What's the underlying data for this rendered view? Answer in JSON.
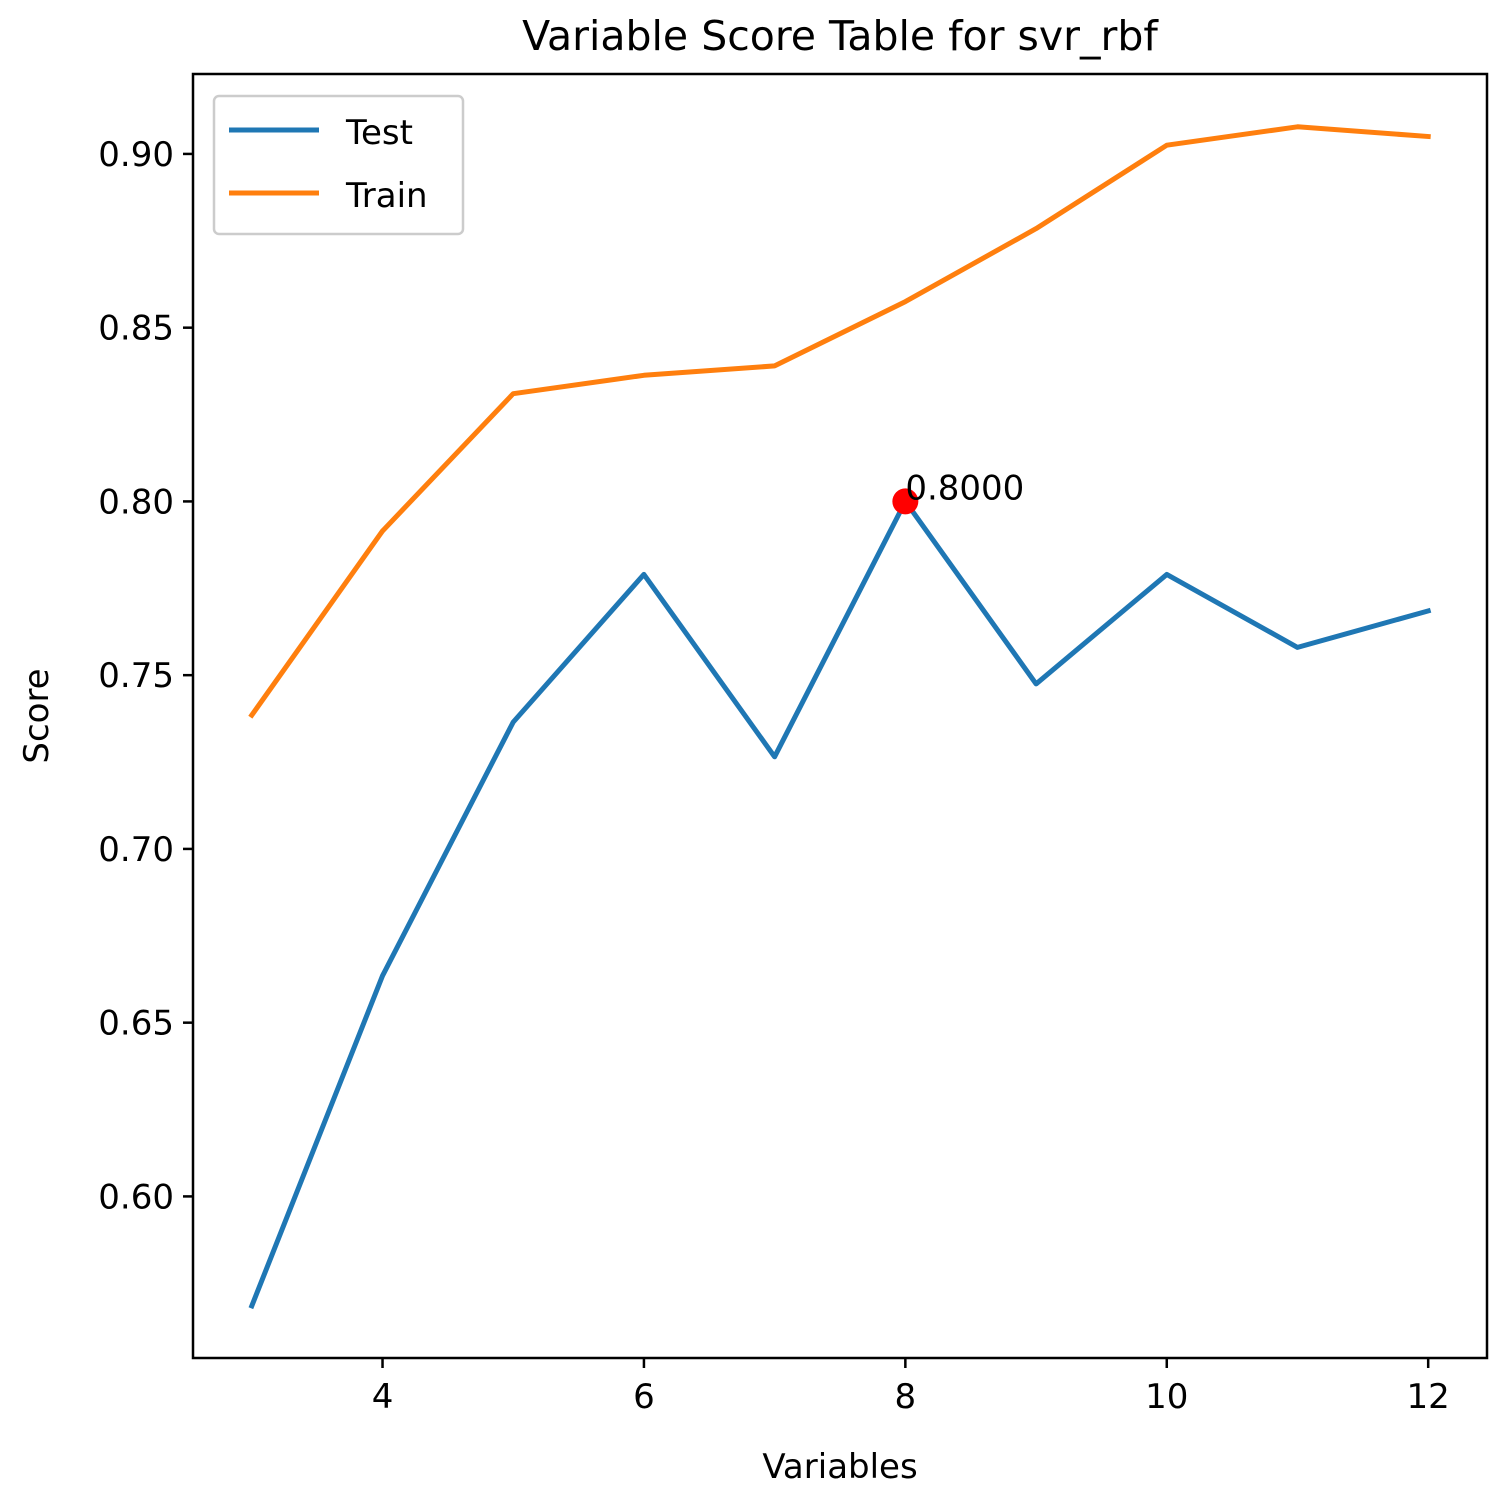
{
  "chart_data": {
    "type": "line",
    "title": "Variable Score Table for svr_rbf",
    "xlabel": "Variables",
    "ylabel": "Score",
    "xlim": [
      2.55,
      12.45
    ],
    "ylim": [
      0.5535,
      0.923
    ],
    "x_ticks": [
      4,
      6,
      8,
      10,
      12
    ],
    "y_ticks": [
      0.6,
      0.65,
      0.7,
      0.75,
      0.8,
      0.85,
      0.9
    ],
    "x_tick_labels": [
      "4",
      "6",
      "8",
      "10",
      "12"
    ],
    "y_tick_labels": [
      "0.60",
      "0.65",
      "0.70",
      "0.75",
      "0.80",
      "0.85",
      "0.90"
    ],
    "grid": false,
    "legend_position": "upper-left",
    "x": [
      3,
      4,
      5,
      6,
      7,
      8,
      9,
      10,
      11,
      12
    ],
    "series": [
      {
        "name": "Test",
        "color": "#1f77b4",
        "values": [
          0.5685,
          0.6635,
          0.7365,
          0.779,
          0.7265,
          0.8,
          0.7475,
          0.779,
          0.758,
          0.7685
        ]
      },
      {
        "name": "Train",
        "color": "#ff7f0e",
        "values": [
          0.7385,
          0.7915,
          0.831,
          0.8363,
          0.839,
          0.8575,
          0.8785,
          0.9025,
          0.9078,
          0.905
        ]
      }
    ],
    "highlight": {
      "x": 8,
      "y": 0.8,
      "label": "0.8000",
      "color": "#ff0000"
    }
  }
}
